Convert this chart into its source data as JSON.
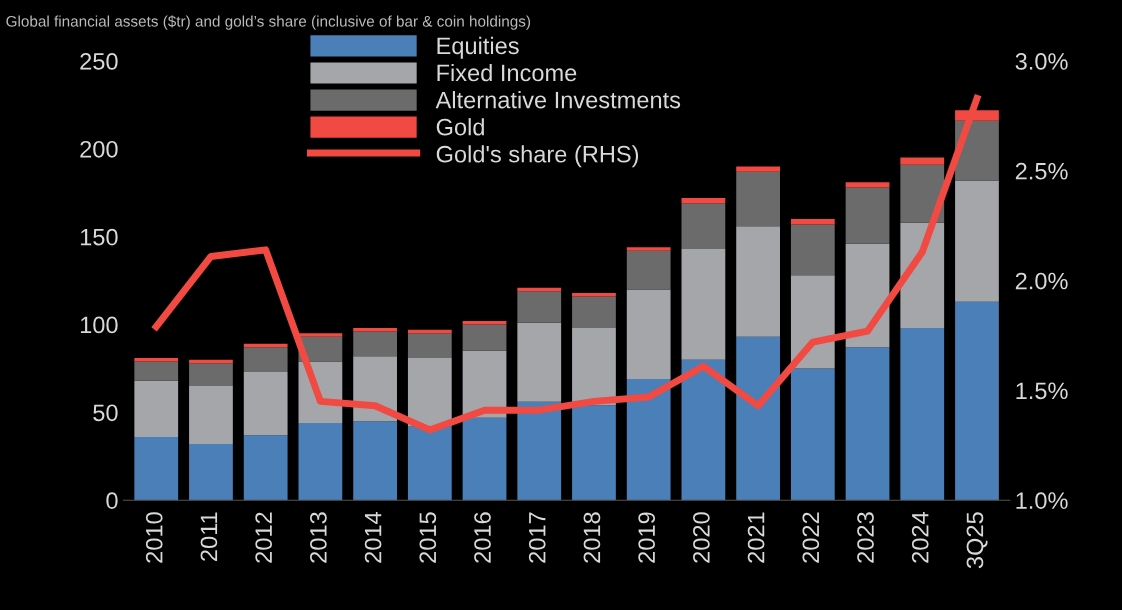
{
  "chart_data": {
    "type": "bar",
    "stacked": true,
    "title": "Global financial assets ($tr) and gold’s share (inclusive of bar & coin holdings)",
    "categories": [
      "2010",
      "2011",
      "2012",
      "2013",
      "2014",
      "2015",
      "2016",
      "2017",
      "2018",
      "2019",
      "2020",
      "2021",
      "2022",
      "2023",
      "2024",
      "3Q25"
    ],
    "series": [
      {
        "name": "Equities",
        "color": "#4a7fb8",
        "values": [
          36,
          32,
          37,
          44,
          45,
          42,
          47,
          56,
          54,
          69,
          80,
          93,
          75,
          87,
          98,
          113
        ]
      },
      {
        "name": "Fixed Income",
        "color": "#a5a6aa",
        "values": [
          32,
          33,
          36,
          35,
          37,
          39,
          38,
          45,
          44,
          51,
          63,
          63,
          53,
          59,
          60,
          69
        ]
      },
      {
        "name": "Alternative Investments",
        "color": "#6b6b6b",
        "values": [
          11,
          13,
          14,
          14,
          14,
          14,
          15,
          18,
          18,
          22,
          26,
          31,
          29,
          32,
          33,
          34
        ]
      },
      {
        "name": "Gold",
        "color": "#f04a42",
        "values": [
          2,
          2,
          2,
          2,
          2,
          2,
          2,
          2,
          2,
          2,
          3,
          3,
          3,
          3,
          4,
          6
        ]
      },
      {
        "name": "Gold's share (RHS)",
        "type": "line",
        "axis": "y2",
        "color": "#f04a42",
        "values": [
          1.79,
          2.11,
          2.14,
          1.45,
          1.43,
          1.32,
          1.41,
          1.41,
          1.45,
          1.47,
          1.61,
          1.43,
          1.72,
          1.77,
          2.13,
          2.83
        ]
      }
    ],
    "ylim": [
      0,
      250
    ],
    "yticks": [
      0,
      50,
      100,
      150,
      200,
      250
    ],
    "y2lim": [
      1.0,
      3.0
    ],
    "y2ticks": [
      {
        "value": 1.0,
        "label": "1.0%"
      },
      {
        "value": 1.5,
        "label": "1.5%"
      },
      {
        "value": 2.0,
        "label": "2.0%"
      },
      {
        "value": 2.5,
        "label": "2.5%"
      },
      {
        "value": 3.0,
        "label": "3.0%"
      }
    ],
    "grid": false,
    "legend": "top",
    "line_style": "solid",
    "marker": "none"
  }
}
